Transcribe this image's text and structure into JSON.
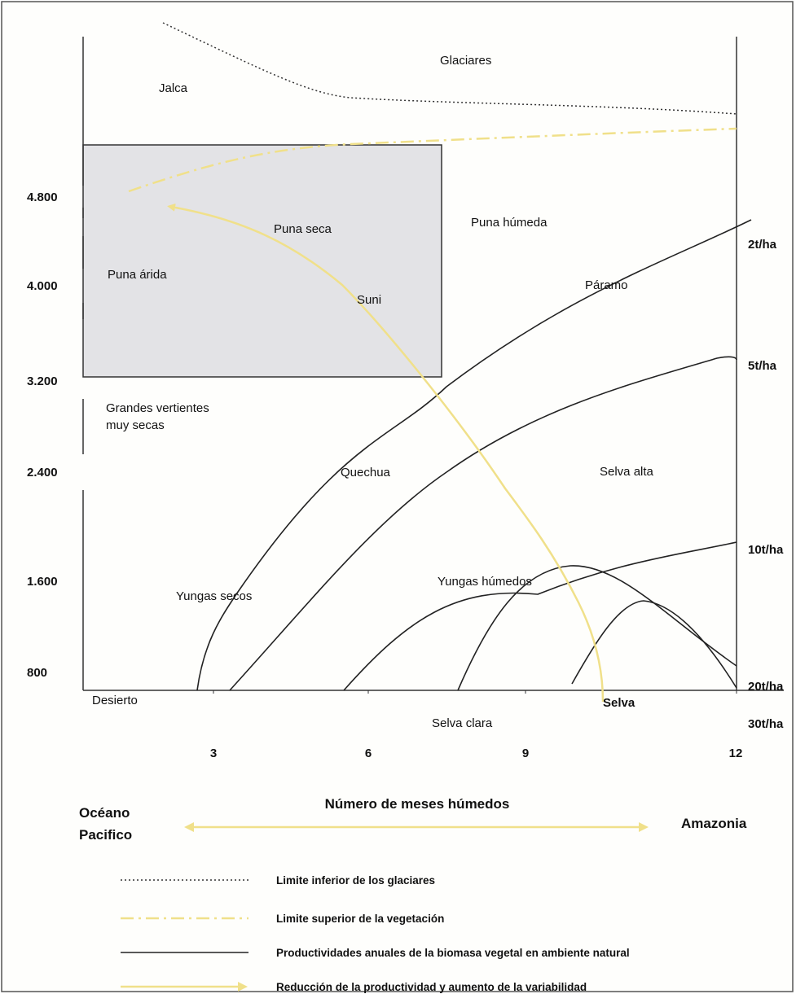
{
  "figure": {
    "y_tick_labels": [
      "4.800",
      "4.000",
      "3.200",
      "2.400",
      "1.600",
      "800"
    ],
    "x_tick_labels": [
      "3",
      "6",
      "9",
      "12"
    ],
    "x_axis_title": "Número de meses húmedos",
    "left_side_label": [
      "Océano",
      "Pacifico"
    ],
    "right_side_label": "Amazonia",
    "productivity_labels": [
      "2t/ha",
      "5t/ha",
      "10t/ha",
      "20t/ha",
      "30t/ha"
    ],
    "zones": {
      "glaciares": "Glaciares",
      "jalca": "Jalca",
      "puna_seca": "Puna seca",
      "puna_humeda": "Puna húmeda",
      "puna_arida": "Puna árida",
      "suni": "Suni",
      "paramo": "Páramo",
      "grandes_vertientes": [
        "Grandes vertientes",
        "muy secas"
      ],
      "quechua": "Quechua",
      "selva_alta": "Selva alta",
      "yungas_secos": "Yungas secos",
      "yungas_humedos": "Yungas húmedos",
      "desierto": "Desierto",
      "selva": "Selva",
      "selva_clara": "Selva clara"
    }
  },
  "legend": [
    {
      "key": "glacier",
      "label": "Limite inferior de los glaciares",
      "style": "dotted",
      "color": "#333333"
    },
    {
      "key": "vegetation",
      "label": "Limite superior de la vegetación",
      "style": "dash-dot",
      "color": "#f0e08a"
    },
    {
      "key": "productivity",
      "label": "Productividades anuales de la biomasa vegetal en ambiente natural",
      "style": "solid",
      "color": "#222222"
    },
    {
      "key": "reduction",
      "label": "Reducción de la productividad y aumento de la variabilidad",
      "style": "arrow",
      "color": "#f0e08a"
    }
  ],
  "colors": {
    "gray_zone": "#e3e3e6",
    "yellow": "#f0e08a",
    "line": "#222222"
  }
}
